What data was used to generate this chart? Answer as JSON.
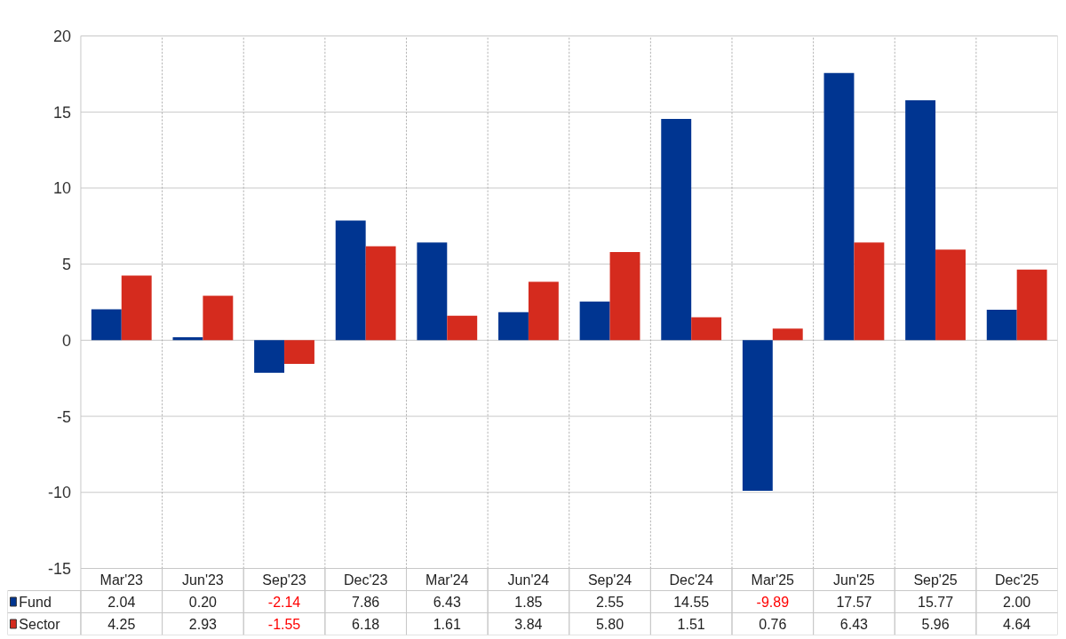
{
  "chart_data": {
    "type": "bar",
    "categories": [
      "Mar'23",
      "Jun'23",
      "Sep'23",
      "Dec'23",
      "Mar'24",
      "Jun'24",
      "Sep'24",
      "Dec'24",
      "Mar'25",
      "Jun'25",
      "Sep'25",
      "Dec'25"
    ],
    "series": [
      {
        "name": "Fund",
        "color": "#003591",
        "values": [
          2.04,
          0.2,
          -2.14,
          7.86,
          6.43,
          1.85,
          2.55,
          14.55,
          -9.89,
          17.57,
          15.77,
          2.0
        ],
        "value_labels": [
          "2.04",
          "0.20",
          "-2.14",
          "7.86",
          "6.43",
          "1.85",
          "2.55",
          "14.55",
          "-9.89",
          "17.57",
          "15.77",
          "2.00"
        ]
      },
      {
        "name": "Sector",
        "color": "#d52b1e",
        "values": [
          4.25,
          2.93,
          -1.55,
          6.18,
          1.61,
          3.84,
          5.8,
          1.51,
          0.76,
          6.43,
          5.96,
          4.64
        ],
        "value_labels": [
          "4.25",
          "2.93",
          "-1.55",
          "6.18",
          "1.61",
          "3.84",
          "5.80",
          "1.51",
          "0.76",
          "6.43",
          "5.96",
          "4.64"
        ]
      }
    ],
    "ylim": [
      -15,
      20
    ],
    "yticks": [
      -15,
      -10,
      -5,
      0,
      5,
      10,
      15,
      20
    ],
    "grid": true,
    "legend": "bottom"
  }
}
